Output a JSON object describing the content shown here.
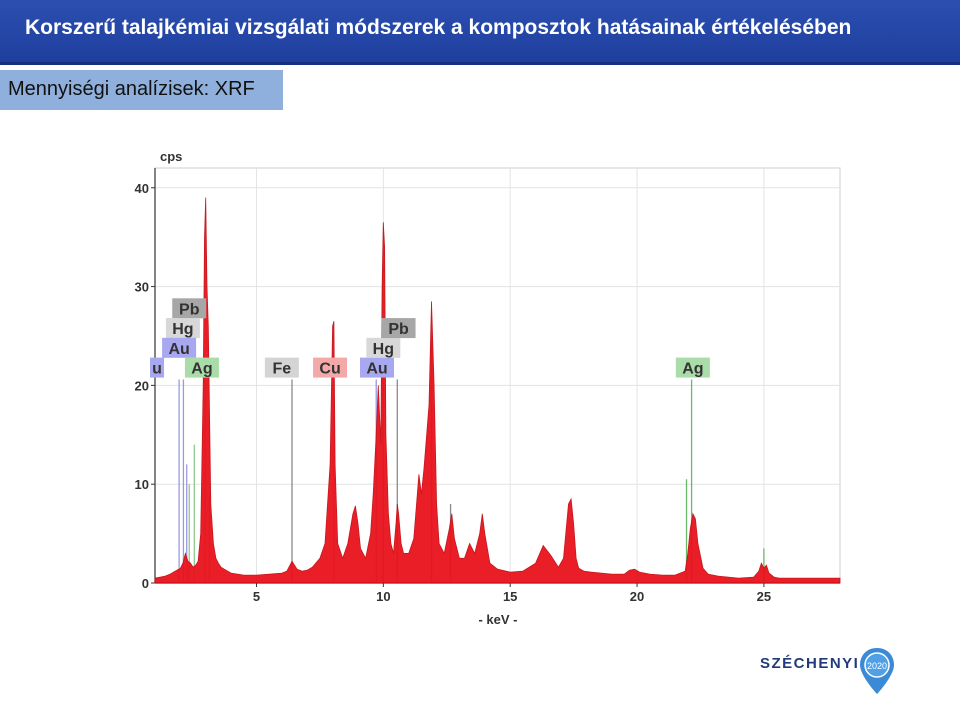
{
  "header": {
    "title": "Korszerű talajkémiai vizsgálati módszerek a komposztok hatásainak értékelésében"
  },
  "section": {
    "label": "Mennyiségi analízisek: XRF"
  },
  "colors": {
    "header_bg": "#2b4fb0",
    "subtitle_bg": "#8fb0dd",
    "spectrum": "#e8121c"
  },
  "chart_data": {
    "type": "area",
    "ylabel": "cps",
    "xlabel": "- keV -",
    "xlim": [
      1,
      28
    ],
    "ylim": [
      0,
      42
    ],
    "xticks": [
      5,
      10,
      15,
      20,
      25
    ],
    "yticks": [
      0,
      10,
      20,
      30,
      40
    ],
    "grid": true,
    "series": [
      {
        "x": [
          1.0,
          1.2,
          1.4,
          1.6,
          1.8,
          2.0,
          2.1,
          2.2,
          2.3,
          2.4,
          2.5,
          2.6,
          2.7,
          2.8,
          2.9,
          2.95,
          3.0,
          3.05,
          3.1,
          3.2,
          3.3,
          3.4,
          3.5,
          3.6,
          3.8,
          4.0,
          4.5,
          5.0,
          5.5,
          6.0,
          6.2,
          6.4,
          6.6,
          6.8,
          7.0,
          7.2,
          7.5,
          7.7,
          7.9,
          8.0,
          8.05,
          8.1,
          8.2,
          8.4,
          8.6,
          8.8,
          8.9,
          9.0,
          9.1,
          9.3,
          9.5,
          9.6,
          9.7,
          9.8,
          9.9,
          9.95,
          10.0,
          10.05,
          10.1,
          10.2,
          10.3,
          10.4,
          10.5,
          10.55,
          10.6,
          10.7,
          10.8,
          11.0,
          11.2,
          11.4,
          11.5,
          11.6,
          11.8,
          11.9,
          12.0,
          12.1,
          12.2,
          12.4,
          12.6,
          12.7,
          12.8,
          13.0,
          13.2,
          13.4,
          13.6,
          13.8,
          13.9,
          14.0,
          14.2,
          14.5,
          15.0,
          15.5,
          16.0,
          16.3,
          16.6,
          16.9,
          17.1,
          17.3,
          17.4,
          17.5,
          17.6,
          17.7,
          17.9,
          18.2,
          18.6,
          19.0,
          19.5,
          19.7,
          19.9,
          20.1,
          20.5,
          21.0,
          21.5,
          21.9,
          22.0,
          22.1,
          22.2,
          22.3,
          22.4,
          22.6,
          22.8,
          23.2,
          24.0,
          24.6,
          24.8,
          24.9,
          25.0,
          25.1,
          25.2,
          25.4,
          25.6,
          26.0,
          27.0,
          28.0
        ],
        "y": [
          0.5,
          0.6,
          0.7,
          0.9,
          1.2,
          1.5,
          2.0,
          3.0,
          2.2,
          2.0,
          1.6,
          1.8,
          2.2,
          5.0,
          20.0,
          35.0,
          39.0,
          30.0,
          26.0,
          8.0,
          4.0,
          2.5,
          2.0,
          1.6,
          1.3,
          1.0,
          0.8,
          0.8,
          0.9,
          1.0,
          1.2,
          2.2,
          1.4,
          1.2,
          1.3,
          1.6,
          2.5,
          4.0,
          12.0,
          26.0,
          26.5,
          12.0,
          4.0,
          2.5,
          4.0,
          7.0,
          7.8,
          6.0,
          3.5,
          2.5,
          5.0,
          9.0,
          14.0,
          20.0,
          14.0,
          30.0,
          36.5,
          34.0,
          15.0,
          7.0,
          4.0,
          3.0,
          6.0,
          8.0,
          7.0,
          4.0,
          3.0,
          3.0,
          4.5,
          11.0,
          9.0,
          11.5,
          18.0,
          28.5,
          20.0,
          8.0,
          4.0,
          3.0,
          5.5,
          7.0,
          4.5,
          2.5,
          2.5,
          4.0,
          3.0,
          5.0,
          7.0,
          5.0,
          2.0,
          1.4,
          1.1,
          1.2,
          2.0,
          3.8,
          2.8,
          1.6,
          2.5,
          8.0,
          8.5,
          6.0,
          2.5,
          1.5,
          1.2,
          1.1,
          1.0,
          0.9,
          0.9,
          1.3,
          1.4,
          1.1,
          0.9,
          0.8,
          0.8,
          1.2,
          3.0,
          5.5,
          7.0,
          6.5,
          4.0,
          1.5,
          0.9,
          0.7,
          0.5,
          0.6,
          1.2,
          2.0,
          1.5,
          1.8,
          1.0,
          0.6,
          0.5,
          0.5,
          0.5,
          0.5
        ]
      }
    ],
    "lines": [
      {
        "x": 1.95,
        "top": 20.6,
        "color": "#9a9ae0"
      },
      {
        "x": 2.12,
        "top": 20.6,
        "color": "#9a9ae0"
      },
      {
        "x": 2.25,
        "top": 12.0,
        "color": "#9a9ae0"
      },
      {
        "x": 2.35,
        "top": 10.0,
        "color": "#8fc98f"
      },
      {
        "x": 2.55,
        "top": 14.0,
        "color": "#8fc98f"
      },
      {
        "x": 2.98,
        "top": 20.5,
        "color": "#8fc98f"
      },
      {
        "x": 3.15,
        "top": 9.0,
        "color": "#8fc98f"
      },
      {
        "x": 6.4,
        "top": 20.6,
        "color": "#8a8a8a"
      },
      {
        "x": 8.05,
        "top": 20.6,
        "color": "#f4a3a3"
      },
      {
        "x": 9.72,
        "top": 20.6,
        "color": "#9a9ae0"
      },
      {
        "x": 9.99,
        "top": 22.6,
        "color": "#8a8a8a"
      },
      {
        "x": 10.55,
        "top": 20.6,
        "color": "#8a8a8a"
      },
      {
        "x": 11.9,
        "top": 24.8,
        "color": "#8a8a8a"
      },
      {
        "x": 12.65,
        "top": 8.0,
        "color": "#8a8a8a"
      },
      {
        "x": 22.15,
        "top": 20.6,
        "color": "#6ab96a"
      },
      {
        "x": 21.95,
        "top": 10.5,
        "color": "#6ab96a"
      },
      {
        "x": 25.0,
        "top": 3.5,
        "color": "#6ab96a"
      }
    ],
    "labels": [
      {
        "text": "Pb",
        "x": 2.35,
        "y": 27.8,
        "bg": "#a7a7a7"
      },
      {
        "text": "Hg",
        "x": 2.1,
        "y": 25.8,
        "bg": "#d8d8d8"
      },
      {
        "text": "Au",
        "x": 1.95,
        "y": 23.8,
        "bg": "#a8a8f0"
      },
      {
        "text": "Ag",
        "x": 2.85,
        "y": 21.8,
        "bg": "#a9dca9"
      },
      {
        "text": "Fe",
        "x": 6.0,
        "y": 21.8,
        "bg": "#d4d4d4"
      },
      {
        "text": "Cu",
        "x": 7.9,
        "y": 21.8,
        "bg": "#f4a9a9"
      },
      {
        "text": "Au",
        "x": 9.75,
        "y": 21.8,
        "bg": "#a8a8f0"
      },
      {
        "text": "Hg",
        "x": 10.0,
        "y": 23.8,
        "bg": "#d8d8d8"
      },
      {
        "text": "Pb",
        "x": 10.6,
        "y": 25.8,
        "bg": "#a7a7a7"
      },
      {
        "text": "Ag",
        "x": 22.2,
        "y": 21.8,
        "bg": "#a9dca9"
      },
      {
        "text": "u",
        "x": 1.08,
        "y": 21.8,
        "bg": "#a8a8f0"
      }
    ]
  },
  "logo": {
    "text": "SZÉCHENYI",
    "badge": "2020"
  }
}
